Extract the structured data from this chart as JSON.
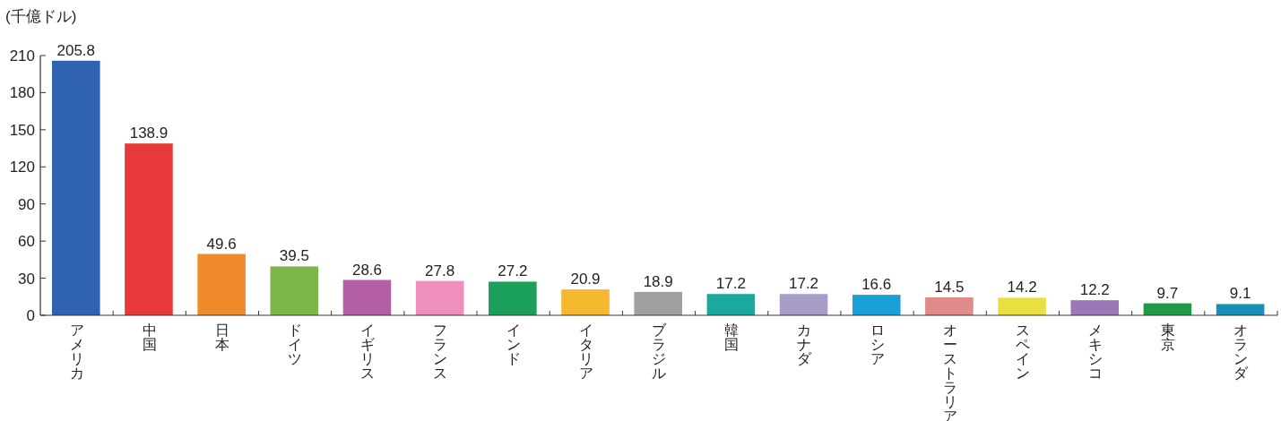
{
  "chart_data": {
    "type": "bar",
    "ylabel": "(千億ドル)",
    "categories": [
      "アメリカ",
      "中国",
      "日本",
      "ドイツ",
      "イギリス",
      "フランス",
      "インド",
      "イタリア",
      "ブラジル",
      "韓国",
      "カナダ",
      "ロシア",
      "オーストラリア",
      "スペイン",
      "メキシコ",
      "東京",
      "オランダ"
    ],
    "values": [
      205.8,
      138.9,
      49.6,
      39.5,
      28.6,
      27.8,
      27.2,
      20.9,
      18.9,
      17.2,
      17.2,
      16.6,
      14.5,
      14.2,
      12.2,
      9.7,
      9.1
    ],
    "colors": [
      "#2f62b0",
      "#e8393a",
      "#f08a2c",
      "#7ab648",
      "#b55ea8",
      "#ef8fbd",
      "#1aa05a",
      "#f5b82e",
      "#a0a0a0",
      "#1aa8a0",
      "#a89cc8",
      "#1aa0d8",
      "#e08a8a",
      "#e8e040",
      "#9b78b8",
      "#1f9a48",
      "#1890b8"
    ],
    "ylim": [
      0,
      210
    ],
    "yticks": [
      0,
      30,
      60,
      90,
      120,
      150,
      180,
      210
    ],
    "data_labels": true,
    "grid": false
  }
}
